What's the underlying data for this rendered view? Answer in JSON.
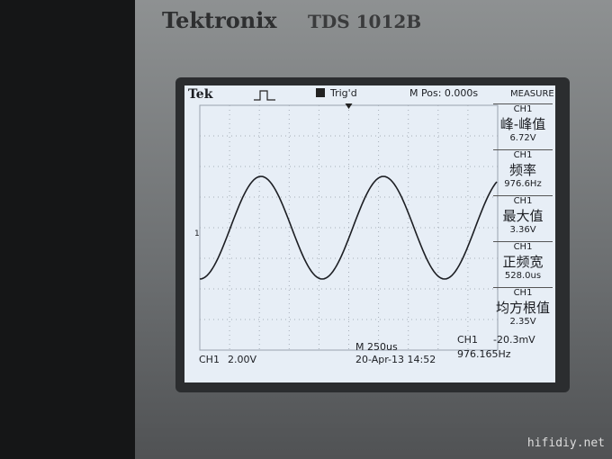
{
  "device": {
    "brand": "Tektronix",
    "model": "TDS 1012B"
  },
  "screen": {
    "header": {
      "logo": "Tek",
      "trigger_state": "Trig'd",
      "position": "M Pos: 0.000s",
      "menu_title": "MEASURE"
    },
    "channel_marker": "1",
    "measurements": [
      {
        "channel": "CH1",
        "label": "峰-峰值",
        "value": "6.72V"
      },
      {
        "channel": "CH1",
        "label": "频率",
        "value": "976.6Hz"
      },
      {
        "channel": "CH1",
        "label": "最大值",
        "value": "3.36V"
      },
      {
        "channel": "CH1",
        "label": "正频宽",
        "value": "528.0us"
      },
      {
        "channel": "CH1",
        "label": "均方根值",
        "value": "2.35V"
      }
    ],
    "footer": {
      "channel": "CH1",
      "volts_per_div": "2.00V",
      "timebase": "M 250us",
      "trigger_channel": "CH1",
      "trigger_level": "-20.3mV",
      "datetime": "20-Apr-13 14:52",
      "frequency": "976.165Hz"
    }
  },
  "watermark": "hifidiy.net"
}
